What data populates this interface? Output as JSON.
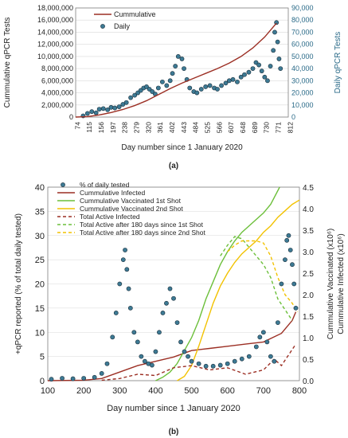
{
  "chart_data": [
    {
      "panel_label": "(a)",
      "type": "line",
      "xlabel": "Day number since 1 January 2020",
      "ylabel_left": "Cummulative qPCR Tests",
      "ylabel_right": "Daily qPCR Tests",
      "x_ticks": [
        "74",
        "115",
        "156",
        "197",
        "238",
        "279",
        "320",
        "361",
        "402",
        "443",
        "484",
        "525",
        "566",
        "607",
        "648",
        "689",
        "730",
        "771",
        "812"
      ],
      "x_range": [
        74,
        812
      ],
      "y_left_ticks": [
        "0",
        "2,000,000",
        "4,000,000",
        "6,000,000",
        "8,000,000",
        "10,000,000",
        "12,000,000",
        "14,000,000",
        "16,000,000",
        "18,000,000"
      ],
      "y_left_range": [
        0,
        18000000
      ],
      "y_right_ticks": [
        "0",
        "10,000",
        "20,000",
        "30,000",
        "40,000",
        "50,000",
        "60,000",
        "70,000",
        "80,000",
        "90,000"
      ],
      "y_right_range": [
        0,
        90000
      ],
      "legend": [
        "Cummulative",
        "Daily"
      ],
      "legend_position": "top-center",
      "series": [
        {
          "name": "Cummulative",
          "axis": "left",
          "x": [
            74,
            115,
            156,
            197,
            238,
            279,
            320,
            361,
            402,
            443,
            484,
            525,
            566,
            607,
            648,
            689,
            730,
            771
          ],
          "values": [
            0,
            80000,
            350000,
            750000,
            1250000,
            1900000,
            2700000,
            3700000,
            4700000,
            5600000,
            6400000,
            7200000,
            8000000,
            8900000,
            10000000,
            11400000,
            13200000,
            15500000
          ]
        },
        {
          "name": "Daily",
          "axis": "right",
          "x": [
            100,
            115,
            130,
            145,
            156,
            170,
            185,
            197,
            210,
            225,
            238,
            250,
            265,
            279,
            290,
            300,
            310,
            320,
            330,
            340,
            350,
            361,
            375,
            390,
            402,
            410,
            420,
            430,
            443,
            450,
            460,
            470,
            484,
            495,
            510,
            525,
            540,
            555,
            566,
            580,
            595,
            607,
            620,
            635,
            648,
            660,
            675,
            689,
            700,
            710,
            720,
            730,
            740,
            750,
            760,
            765,
            771,
            775,
            780,
            785
          ],
          "values": [
            1000,
            3000,
            4500,
            3500,
            6500,
            7000,
            6000,
            8000,
            7500,
            8500,
            10500,
            12000,
            16000,
            18000,
            20000,
            22000,
            24000,
            25000,
            23000,
            21000,
            19000,
            24000,
            29000,
            26000,
            30000,
            36000,
            42000,
            50000,
            48000,
            40000,
            31000,
            24000,
            21000,
            20000,
            23000,
            25000,
            26000,
            24000,
            23000,
            26000,
            28000,
            30000,
            31000,
            29000,
            33000,
            35000,
            37000,
            40000,
            45000,
            43000,
            38000,
            33000,
            30000,
            42000,
            55000,
            70000,
            78000,
            62000,
            48000,
            40000
          ]
        }
      ]
    },
    {
      "panel_label": "(b)",
      "type": "line",
      "xlabel": "Day number since 1 January 2020",
      "ylabel_left": "+qPCR reported (% of total daily tested)",
      "ylabel_right_1": "Cummulative Vaccinated (x10⁶)",
      "ylabel_right_2": "Cummulative Infected (x10⁶)",
      "x_ticks": [
        "100",
        "200",
        "300",
        "400",
        "500",
        "600",
        "700",
        "800"
      ],
      "x_range": [
        100,
        800
      ],
      "y_left_ticks": [
        "0",
        "5",
        "10",
        "15",
        "20",
        "25",
        "30",
        "35",
        "40"
      ],
      "y_left_range": [
        0,
        40
      ],
      "y_right_ticks": [
        "0.0",
        "0.5",
        "1.0",
        "1.5",
        "2.0",
        "2.5",
        "3.0",
        "3.5",
        "4.0",
        "4.5"
      ],
      "y_right_range": [
        0,
        4.5
      ],
      "legend": [
        "% of daily tested",
        "Cummulative Infected",
        "Cummulative Vaccinated 1st Shot",
        "Cummulative Vaccinated 2nd Shot",
        "Total Active Infected",
        "Total Active after 180 days since 1st Shot",
        "Total Active after 180 days since 2nd Shot"
      ],
      "legend_position": "top-left",
      "series": [
        {
          "name": "% of daily tested",
          "axis": "left",
          "x": [
            110,
            140,
            170,
            200,
            230,
            250,
            265,
            280,
            290,
            300,
            310,
            315,
            320,
            325,
            330,
            340,
            350,
            360,
            370,
            380,
            390,
            400,
            410,
            420,
            430,
            440,
            450,
            460,
            470,
            480,
            490,
            500,
            520,
            540,
            560,
            580,
            600,
            620,
            640,
            660,
            680,
            690,
            700,
            710,
            720,
            730,
            740,
            750,
            760,
            765,
            770,
            775,
            780,
            785,
            790
          ],
          "values": [
            0.3,
            0.5,
            0.4,
            0.5,
            0.7,
            1.5,
            3.5,
            9,
            14,
            20,
            25,
            27,
            23,
            19,
            15,
            10,
            8,
            5,
            4,
            3.5,
            3.2,
            6,
            10,
            14,
            16,
            19,
            17,
            12,
            8,
            6,
            5,
            4,
            3.5,
            3,
            3,
            3.2,
            3.5,
            4,
            4.5,
            5,
            7,
            9,
            10,
            8,
            5,
            4,
            12,
            20,
            25,
            29,
            30,
            27,
            24,
            20,
            15
          ]
        },
        {
          "name": "Cummulative Infected",
          "axis": "right",
          "x": [
            100,
            200,
            250,
            300,
            350,
            400,
            450,
            500,
            550,
            600,
            650,
            700,
            750,
            780,
            790
          ],
          "values": [
            0.0,
            0.01,
            0.05,
            0.2,
            0.35,
            0.45,
            0.55,
            0.7,
            0.75,
            0.8,
            0.85,
            0.9,
            1.1,
            1.4,
            1.6
          ]
        },
        {
          "name": "Cummulative Vaccinated 1st Shot",
          "axis": "right",
          "x": [
            400,
            420,
            440,
            460,
            480,
            500,
            520,
            540,
            560,
            580,
            600,
            620,
            640,
            660,
            680,
            700,
            720,
            745
          ],
          "values": [
            0.0,
            0.08,
            0.2,
            0.4,
            0.7,
            1.0,
            1.4,
            1.9,
            2.3,
            2.7,
            3.0,
            3.25,
            3.45,
            3.6,
            3.75,
            3.9,
            4.1,
            4.5
          ]
        },
        {
          "name": "Cummulative Vaccinated 2nd Shot",
          "axis": "right",
          "x": [
            460,
            480,
            500,
            520,
            540,
            560,
            580,
            600,
            620,
            640,
            660,
            680,
            700,
            720,
            740,
            760,
            780,
            800
          ],
          "values": [
            0.0,
            0.1,
            0.35,
            0.8,
            1.3,
            1.8,
            2.2,
            2.5,
            2.75,
            2.95,
            3.1,
            3.25,
            3.45,
            3.6,
            3.8,
            3.95,
            4.1,
            4.2
          ]
        },
        {
          "name": "Total Active Infected",
          "axis": "right",
          "x": [
            250,
            300,
            350,
            400,
            450,
            500,
            550,
            600,
            650,
            700,
            730,
            750,
            770,
            790
          ],
          "values": [
            0.01,
            0.05,
            0.15,
            0.12,
            0.3,
            0.35,
            0.25,
            0.3,
            0.15,
            0.25,
            0.5,
            0.35,
            0.6,
            0.85
          ]
        },
        {
          "name": "Total Active after 180 days since 1st Shot",
          "axis": "right",
          "x": [
            580,
            600,
            620,
            640,
            660,
            680,
            700,
            720,
            740,
            760,
            780
          ],
          "values": [
            2.9,
            3.15,
            3.35,
            3.3,
            3.1,
            2.9,
            2.7,
            2.4,
            1.9,
            1.65,
            1.4
          ]
        },
        {
          "name": "Total Active after 180 days since 2nd Shot",
          "axis": "right",
          "x": [
            600,
            620,
            640,
            660,
            680,
            700,
            720,
            740,
            760,
            780,
            795
          ],
          "values": [
            3.0,
            3.15,
            3.25,
            3.25,
            3.25,
            3.2,
            2.9,
            2.4,
            2.0,
            1.8,
            1.6
          ]
        }
      ]
    }
  ],
  "colors": {
    "cumulative_tests": "#9c2f24",
    "daily_marker_fill": "#3d7a94",
    "daily_marker_edge": "#1b2f3c",
    "axis_right_text": "#2a6a88",
    "infected": "#9c2f24",
    "vacc1": "#6cbf3a",
    "vacc2": "#f2c200",
    "active": "#9c2f24",
    "active1": "#6cbf3a",
    "active2": "#f2c200",
    "pct_marker_fill": "#3d7a94",
    "grid": "#d9d9d9",
    "axis": "#808080"
  }
}
